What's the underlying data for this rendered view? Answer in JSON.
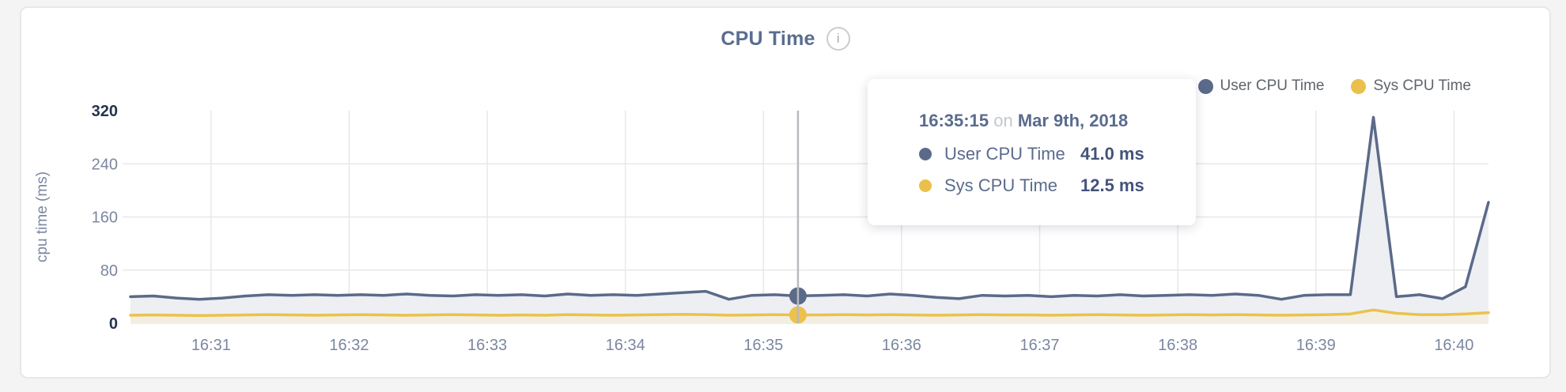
{
  "header": {
    "title": "CPU Time",
    "info_icon": "i"
  },
  "legend": {
    "items": [
      {
        "label": "User CPU Time",
        "color": "#5b6a89"
      },
      {
        "label": "Sys CPU Time",
        "color": "#e9c04b"
      }
    ]
  },
  "tooltip": {
    "time": "16:35:15",
    "conjunction": "on",
    "date": "Mar 9th, 2018",
    "rows": [
      {
        "label": "User CPU Time",
        "value": "41.0 ms",
        "color": "#5b6a89"
      },
      {
        "label": "Sys CPU Time",
        "value": "12.5 ms",
        "color": "#e9c04b"
      }
    ]
  },
  "chart_data": {
    "type": "area",
    "title": "CPU Time",
    "ylabel": "cpu time (ms)",
    "xlabel": "",
    "ylim": [
      0,
      320
    ],
    "yticks": [
      0,
      80,
      160,
      240,
      320
    ],
    "xticks": [
      "16:31",
      "16:32",
      "16:33",
      "16:34",
      "16:35",
      "16:36",
      "16:37",
      "16:38",
      "16:39",
      "16:40"
    ],
    "x_range": [
      "16:30:25",
      "16:40:15"
    ],
    "grid": true,
    "legend_position": "top-right",
    "hover_x": "16:35:15",
    "x": [
      "16:30:25",
      "16:30:35",
      "16:30:45",
      "16:30:55",
      "16:31:05",
      "16:31:15",
      "16:31:25",
      "16:31:35",
      "16:31:45",
      "16:31:55",
      "16:32:05",
      "16:32:15",
      "16:32:25",
      "16:32:35",
      "16:32:45",
      "16:32:55",
      "16:33:05",
      "16:33:15",
      "16:33:25",
      "16:33:35",
      "16:33:45",
      "16:33:55",
      "16:34:05",
      "16:34:15",
      "16:34:25",
      "16:34:35",
      "16:34:45",
      "16:34:55",
      "16:35:05",
      "16:35:15",
      "16:35:25",
      "16:35:35",
      "16:35:45",
      "16:35:55",
      "16:36:05",
      "16:36:15",
      "16:36:25",
      "16:36:35",
      "16:36:45",
      "16:36:55",
      "16:37:05",
      "16:37:15",
      "16:37:25",
      "16:37:35",
      "16:37:45",
      "16:37:55",
      "16:38:05",
      "16:38:15",
      "16:38:25",
      "16:38:35",
      "16:38:45",
      "16:38:55",
      "16:39:05",
      "16:39:15",
      "16:39:25",
      "16:39:35",
      "16:39:45",
      "16:39:55",
      "16:40:05",
      "16:40:15"
    ],
    "series": [
      {
        "name": "User CPU Time",
        "color": "#5b6a89",
        "fill": "#edeff3",
        "values": [
          40,
          41,
          38,
          36,
          38,
          41,
          43,
          42,
          43,
          42,
          43,
          42,
          44,
          42,
          41,
          43,
          42,
          43,
          41,
          44,
          42,
          43,
          42,
          44,
          46,
          48,
          36,
          42,
          43,
          41,
          42,
          43,
          41,
          44,
          42,
          39,
          37,
          42,
          41,
          42,
          40,
          42,
          41,
          43,
          41,
          42,
          43,
          42,
          44,
          42,
          36,
          42,
          43,
          43,
          310,
          40,
          43,
          37,
          55,
          182
        ]
      },
      {
        "name": "Sys CPU Time",
        "color": "#ecc14c",
        "fill": "#f2efe2",
        "values": [
          12,
          12.5,
          12,
          11.5,
          12,
          12.5,
          13,
          12.5,
          12,
          12.5,
          13,
          12.5,
          12,
          12.5,
          13,
          12.5,
          12,
          12.5,
          12,
          13,
          12.5,
          12,
          12.5,
          13,
          13.5,
          13,
          12,
          12.5,
          13,
          12.5,
          12.5,
          13,
          12.5,
          13,
          12.5,
          12,
          12.5,
          13,
          12.5,
          12.5,
          12,
          12.5,
          13,
          12.5,
          12,
          12.5,
          13,
          12.5,
          13,
          12.5,
          12,
          12.5,
          13,
          14,
          20,
          15,
          13,
          13,
          14,
          16
        ]
      }
    ],
    "axis_colors": {
      "tick_extreme": "#25334e",
      "tick_mid": "#7b87a0",
      "grid": "#e8e8ea",
      "hover_line": "#b7babe"
    }
  }
}
